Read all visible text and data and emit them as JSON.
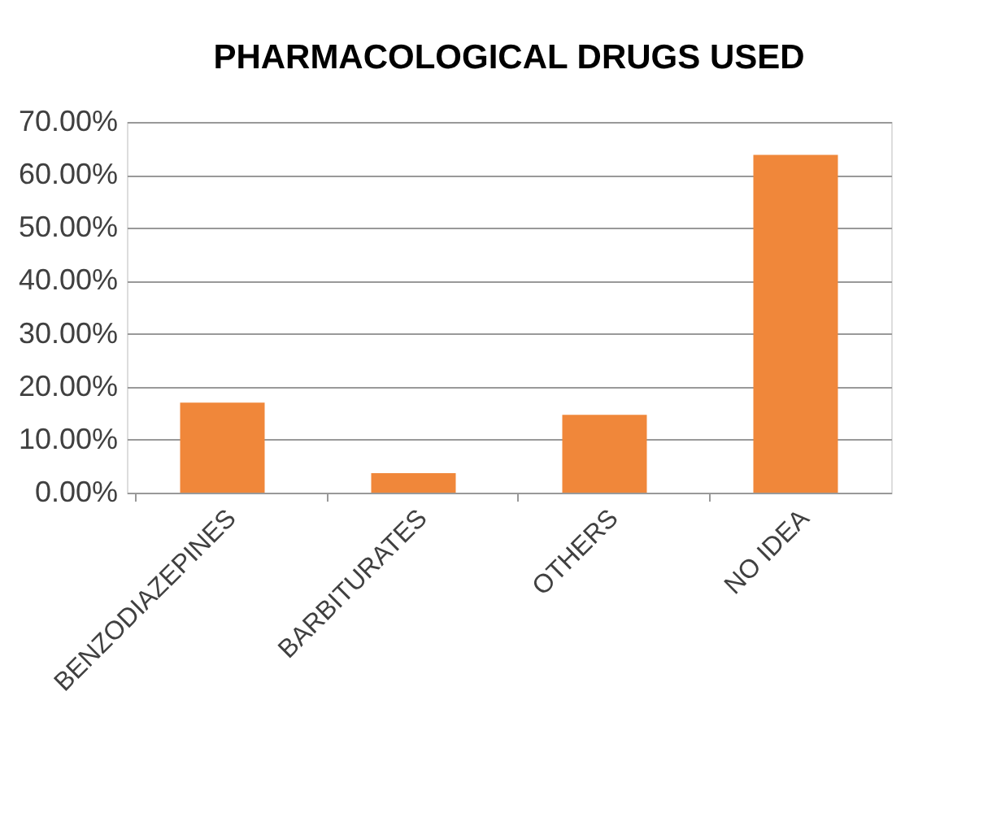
{
  "chart_data": {
    "type": "bar",
    "title": "PHARMACOLOGICAL DRUGS USED",
    "categories": [
      "BENZODIAZEPINES",
      "BARBITURATES",
      "OTHERS",
      "NO IDEA"
    ],
    "values": [
      17.0,
      3.7,
      14.7,
      63.8
    ],
    "color": "#f0873a",
    "ylim": [
      0,
      70
    ],
    "yticks": [
      {
        "value": 0,
        "label": "0.00%"
      },
      {
        "value": 10,
        "label": "10.00%"
      },
      {
        "value": 20,
        "label": "20.00%"
      },
      {
        "value": 30,
        "label": "30.00%"
      },
      {
        "value": 40,
        "label": "40.00%"
      },
      {
        "value": 50,
        "label": "50.00%"
      },
      {
        "value": 60,
        "label": "60.00%"
      },
      {
        "value": 70,
        "label": "70.00%"
      }
    ],
    "grid": "y"
  }
}
